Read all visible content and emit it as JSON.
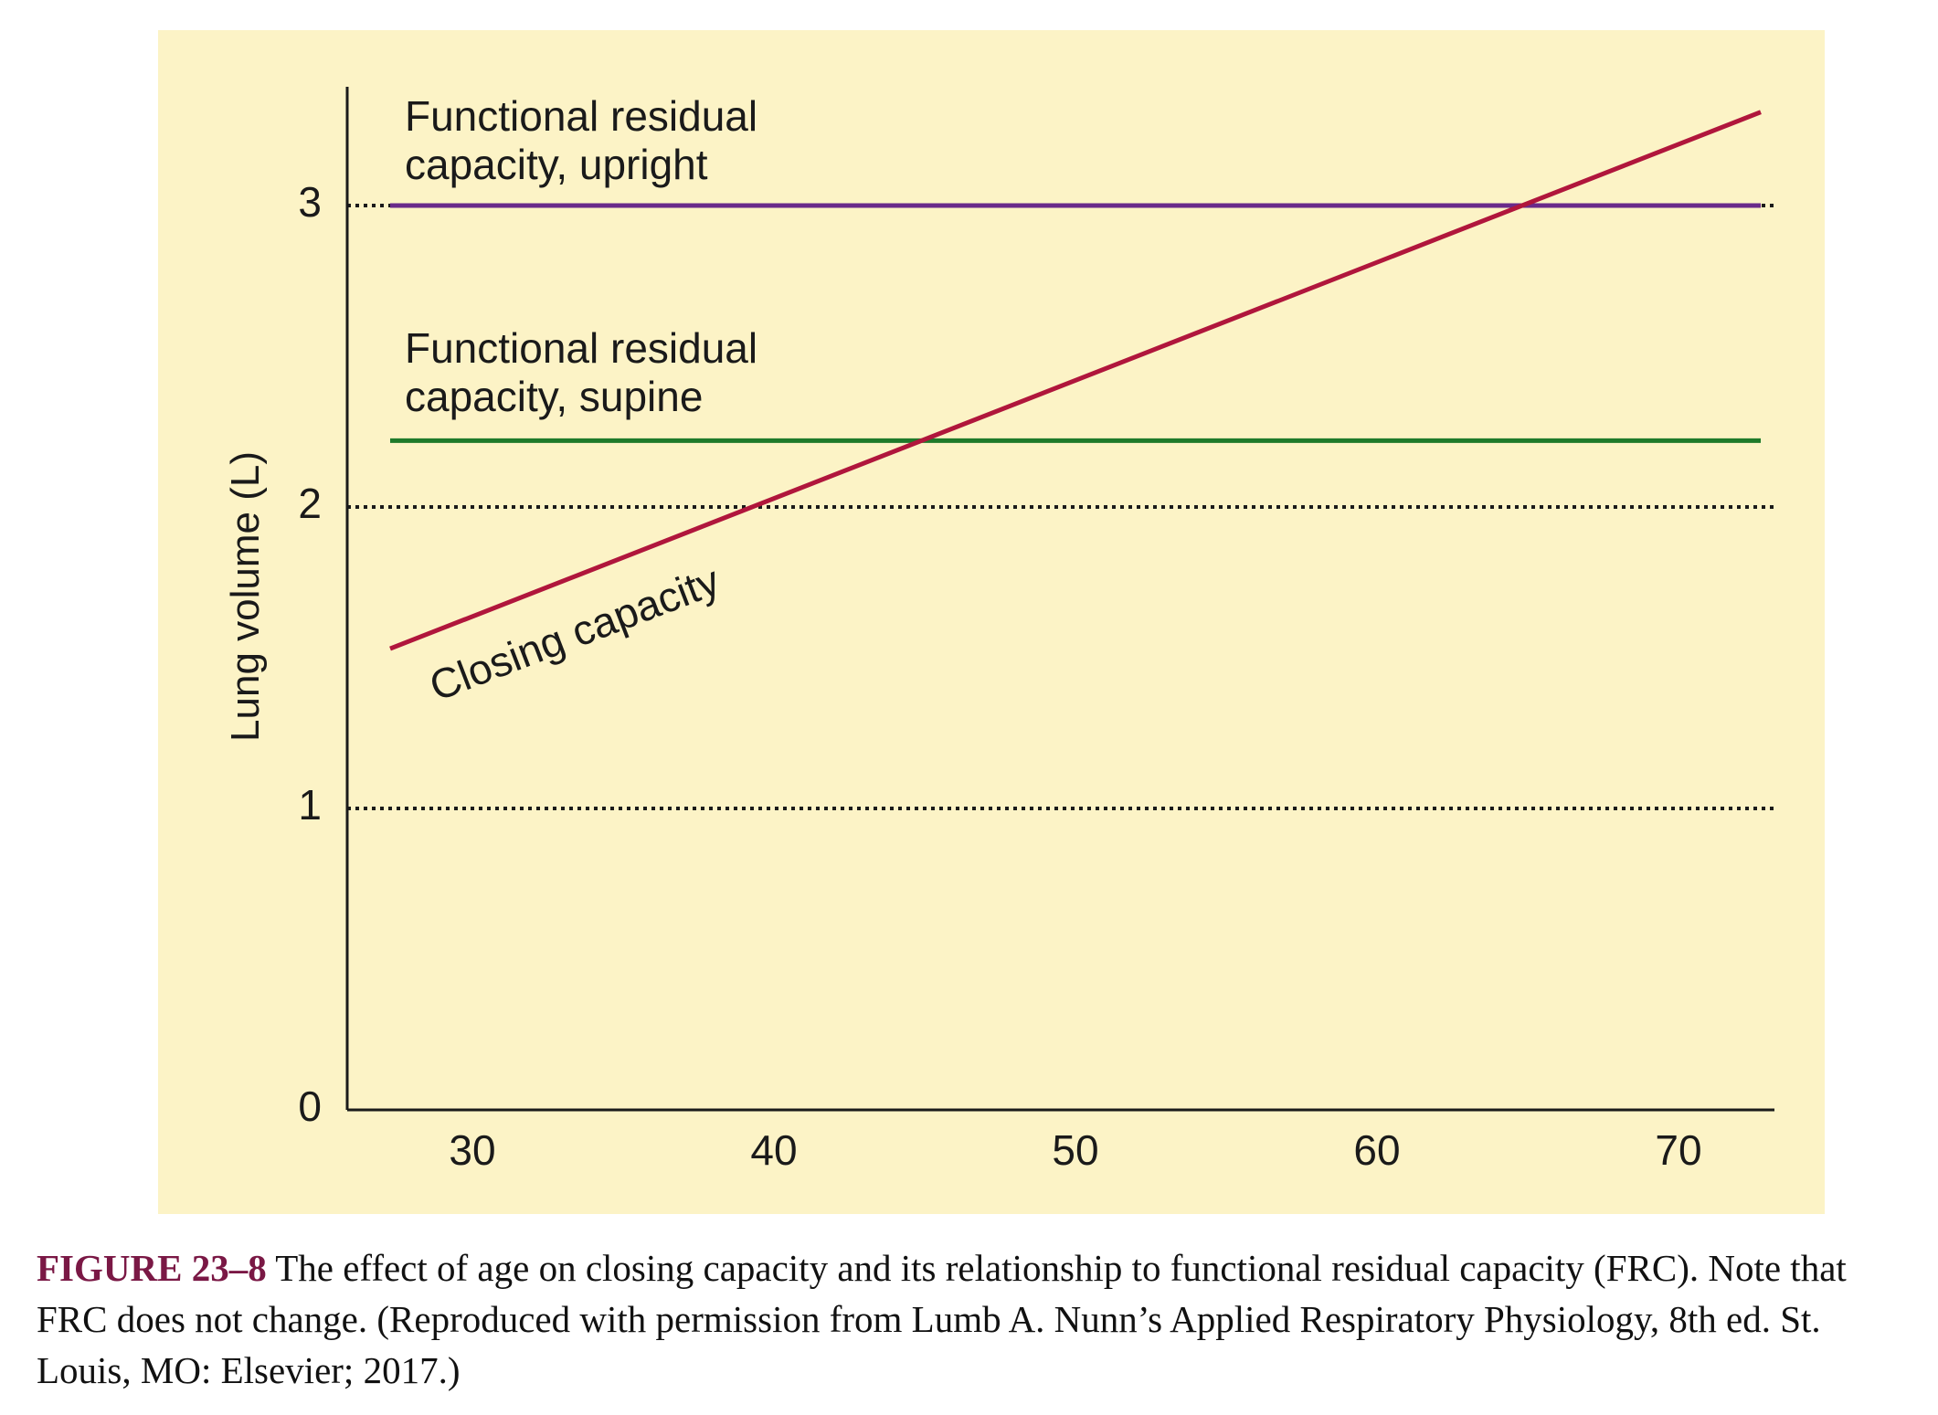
{
  "chart_data": {
    "type": "line",
    "xlabel": "",
    "ylabel": "Lung volume (L)",
    "xlim": [
      25,
      73
    ],
    "ylim": [
      0,
      3.3
    ],
    "x_ticks": [
      30,
      40,
      50,
      60,
      70
    ],
    "y_ticks": [
      0,
      1,
      2,
      3
    ],
    "grid": {
      "style": "dotted",
      "y_values": [
        1,
        2,
        3
      ]
    },
    "background_color": "#fcf3c6",
    "series": [
      {
        "name": "Functional residual capacity, upright",
        "color": "#6a2a8a",
        "x": [
          27,
          73
        ],
        "y": [
          3.0,
          3.0
        ]
      },
      {
        "name": "Functional residual capacity, supine",
        "color": "#1e7a2a",
        "x": [
          27,
          73
        ],
        "y": [
          2.22,
          2.22
        ]
      },
      {
        "name": "Closing capacity",
        "color": "#b0163c",
        "x": [
          27,
          73
        ],
        "y": [
          1.53,
          3.31
        ]
      }
    ],
    "annotations": [
      {
        "lines": [
          "Functional residual",
          "capacity, upright"
        ]
      },
      {
        "lines": [
          "Functional residual",
          "capacity, supine"
        ]
      },
      {
        "lines": [
          "Closing capacity"
        ]
      }
    ]
  },
  "caption": {
    "label": "FIGURE 23–8",
    "text": " The effect of age on closing capacity and its relationship to functional residual capacity (FRC). Note that FRC does not change. (Reproduced with permission from Lumb A. Nunn’s Applied Respiratory Physiology, 8th ed. St. Louis, MO: Elsevier; 2017.)"
  }
}
